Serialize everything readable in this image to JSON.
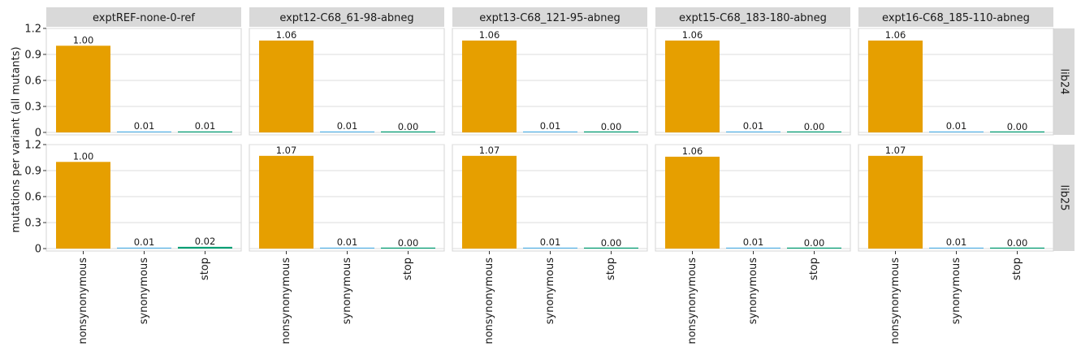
{
  "chart_data": {
    "type": "bar",
    "ylabel": "mutations per variant (all mutants)",
    "xlabel": "",
    "categories": [
      "nonsynonymous",
      "synonymous",
      "stop"
    ],
    "ylim": [
      0,
      1.25
    ],
    "yticks": [
      0,
      0.3,
      0.6,
      0.9,
      1.2
    ],
    "ytick_labels": [
      "0",
      "0.3",
      "0.6",
      "0.9",
      "1.2"
    ],
    "category_colors": {
      "nonsynonymous": "#E69F00",
      "synonymous": "#56B4E9",
      "stop": "#009E73"
    },
    "column_facets": [
      "exptREF-none-0-ref",
      "expt12-C68_61-98-abneg",
      "expt13-C68_121-95-abneg",
      "expt15-C68_183-180-abneg",
      "expt16-C68_185-110-abneg"
    ],
    "row_facets": [
      "lib24",
      "lib25"
    ],
    "panels": [
      {
        "library": "lib24",
        "experiment": "exptREF-none-0-ref",
        "values": [
          1.0,
          0.01,
          0.01
        ],
        "labels": [
          "1.00",
          "0.01",
          "0.01"
        ]
      },
      {
        "library": "lib24",
        "experiment": "expt12-C68_61-98-abneg",
        "values": [
          1.06,
          0.01,
          0.0
        ],
        "labels": [
          "1.06",
          "0.01",
          "0.00"
        ]
      },
      {
        "library": "lib24",
        "experiment": "expt13-C68_121-95-abneg",
        "values": [
          1.06,
          0.01,
          0.0
        ],
        "labels": [
          "1.06",
          "0.01",
          "0.00"
        ]
      },
      {
        "library": "lib24",
        "experiment": "expt15-C68_183-180-abneg",
        "values": [
          1.06,
          0.01,
          0.0
        ],
        "labels": [
          "1.06",
          "0.01",
          "0.00"
        ]
      },
      {
        "library": "lib24",
        "experiment": "expt16-C68_185-110-abneg",
        "values": [
          1.06,
          0.01,
          0.0
        ],
        "labels": [
          "1.06",
          "0.01",
          "0.00"
        ]
      },
      {
        "library": "lib25",
        "experiment": "exptREF-none-0-ref",
        "values": [
          1.0,
          0.01,
          0.02
        ],
        "labels": [
          "1.00",
          "0.01",
          "0.02"
        ]
      },
      {
        "library": "lib25",
        "experiment": "expt12-C68_61-98-abneg",
        "values": [
          1.07,
          0.01,
          0.0
        ],
        "labels": [
          "1.07",
          "0.01",
          "0.00"
        ]
      },
      {
        "library": "lib25",
        "experiment": "expt13-C68_121-95-abneg",
        "values": [
          1.07,
          0.01,
          0.0
        ],
        "labels": [
          "1.07",
          "0.01",
          "0.00"
        ]
      },
      {
        "library": "lib25",
        "experiment": "expt15-C68_183-180-abneg",
        "values": [
          1.06,
          0.01,
          0.0
        ],
        "labels": [
          "1.06",
          "0.01",
          "0.00"
        ]
      },
      {
        "library": "lib25",
        "experiment": "expt16-C68_185-110-abneg",
        "values": [
          1.07,
          0.01,
          0.0
        ],
        "labels": [
          "1.07",
          "0.01",
          "0.00"
        ]
      }
    ],
    "grid": true,
    "legend": "none"
  }
}
